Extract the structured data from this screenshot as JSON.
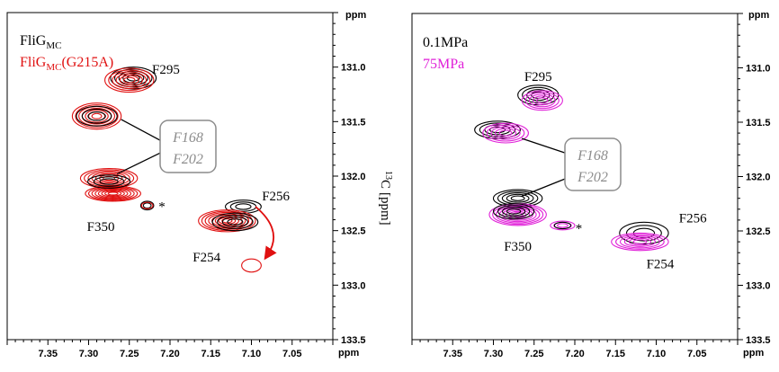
{
  "chart_data": [
    {
      "type": "scatter",
      "subtype": "2D NMR spectrum overlay (contour)",
      "x_unit": "ppm",
      "y_unit": "ppm",
      "xlim": [
        7.4,
        7.0
      ],
      "ylim": [
        130.5,
        133.5
      ],
      "x_ticks": [
        "7.35",
        "7.30",
        "7.25",
        "7.20",
        "7.15",
        "7.10",
        "7.05"
      ],
      "y_ticks": [
        "131.0",
        "131.5",
        "132.0",
        "132.5",
        "133.0",
        "133.5"
      ],
      "legend": [
        "FliG",
        "FliG",
        "MC",
        "MC",
        "(G215A)"
      ],
      "legend_colors": [
        "#000000",
        "#e01010"
      ],
      "axis_label": "[ppm]",
      "axis_label_sup": "13",
      "axis_label_el": "C",
      "box_labels": [
        "F168",
        "F202"
      ],
      "peak_labels": [
        {
          "text": "F295",
          "x": 7.205,
          "y": 131.02
        },
        {
          "text": "F350",
          "x": 7.285,
          "y": 132.46
        },
        {
          "text": "F254",
          "x": 7.155,
          "y": 132.74
        },
        {
          "text": "F256",
          "x": 7.07,
          "y": 132.18
        },
        {
          "text": "*",
          "x": 7.21,
          "y": 132.25
        }
      ],
      "peaks": [
        {
          "series": 0,
          "x": 7.245,
          "y": 131.1,
          "rx": 0.028,
          "ry": 0.1,
          "n": 5
        },
        {
          "series": 1,
          "x": 7.25,
          "y": 131.12,
          "rx": 0.03,
          "ry": 0.11,
          "n": 6
        },
        {
          "series": 1,
          "x": 7.29,
          "y": 131.45,
          "rx": 0.03,
          "ry": 0.12,
          "n": 7
        },
        {
          "series": 0,
          "x": 7.29,
          "y": 131.45,
          "rx": 0.025,
          "ry": 0.09,
          "n": 3
        },
        {
          "series": 1,
          "x": 7.275,
          "y": 132.02,
          "rx": 0.035,
          "ry": 0.09,
          "n": 7
        },
        {
          "series": 1,
          "x": 7.27,
          "y": 132.16,
          "rx": 0.034,
          "ry": 0.07,
          "n": 8
        },
        {
          "series": 0,
          "x": 7.275,
          "y": 132.05,
          "rx": 0.026,
          "ry": 0.06,
          "n": 3
        },
        {
          "series": 0,
          "x": 7.228,
          "y": 132.27,
          "rx": 0.008,
          "ry": 0.04,
          "n": 2
        },
        {
          "series": 1,
          "x": 7.228,
          "y": 132.27,
          "rx": 0.007,
          "ry": 0.03,
          "n": 1
        },
        {
          "series": 0,
          "x": 7.11,
          "y": 132.28,
          "rx": 0.022,
          "ry": 0.06,
          "n": 3
        },
        {
          "series": 1,
          "x": 7.13,
          "y": 132.41,
          "rx": 0.035,
          "ry": 0.1,
          "n": 8
        },
        {
          "series": 0,
          "x": 7.12,
          "y": 132.42,
          "rx": 0.028,
          "ry": 0.08,
          "n": 4
        },
        {
          "series": 1,
          "x": 7.1,
          "y": 132.82,
          "rx": 0.012,
          "ry": 0.06,
          "n": 1
        }
      ],
      "box_anchor": {
        "x": 7.205,
        "y": 131.73
      },
      "connectors": [
        {
          "from": [
            7.26,
            131.48
          ],
          "to": [
            7.21,
            131.68
          ]
        },
        {
          "from": [
            7.265,
            131.98
          ],
          "to": [
            7.21,
            131.78
          ]
        }
      ],
      "arrow": {
        "from": [
          7.095,
          132.28
        ],
        "to": [
          7.08,
          132.72
        ],
        "color": "#e01010"
      }
    },
    {
      "type": "scatter",
      "subtype": "2D NMR spectrum overlay (contour)",
      "x_unit": "ppm",
      "y_unit": "ppm",
      "xlim": [
        7.4,
        7.0
      ],
      "ylim": [
        130.5,
        133.5
      ],
      "x_ticks": [
        "7.35",
        "7.30",
        "7.25",
        "7.20",
        "7.15",
        "7.10",
        "7.05"
      ],
      "y_ticks": [
        "131.0",
        "131.5",
        "132.0",
        "132.5",
        "133.0",
        "133.5"
      ],
      "legend": [
        "0.1MPa",
        "75MPa"
      ],
      "legend_colors": [
        "#000000",
        "#e020d8"
      ],
      "box_labels": [
        "F168",
        "F202"
      ],
      "peak_labels": [
        {
          "text": "F295",
          "x": 7.245,
          "y": 131.08
        },
        {
          "text": "F350",
          "x": 7.27,
          "y": 132.64
        },
        {
          "text": "F254",
          "x": 7.095,
          "y": 132.8
        },
        {
          "text": "F256",
          "x": 7.055,
          "y": 132.38
        },
        {
          "text": "*",
          "x": 7.195,
          "y": 132.45
        }
      ],
      "peaks": [
        {
          "series": 0,
          "x": 7.245,
          "y": 131.25,
          "rx": 0.025,
          "ry": 0.09,
          "n": 4
        },
        {
          "series": 1,
          "x": 7.24,
          "y": 131.3,
          "rx": 0.025,
          "ry": 0.09,
          "n": 5
        },
        {
          "series": 0,
          "x": 7.295,
          "y": 131.57,
          "rx": 0.028,
          "ry": 0.08,
          "n": 4
        },
        {
          "series": 1,
          "x": 7.285,
          "y": 131.6,
          "rx": 0.028,
          "ry": 0.09,
          "n": 5
        },
        {
          "series": 0,
          "x": 7.27,
          "y": 132.2,
          "rx": 0.03,
          "ry": 0.08,
          "n": 5
        },
        {
          "series": 1,
          "x": 7.27,
          "y": 132.35,
          "rx": 0.035,
          "ry": 0.1,
          "n": 8
        },
        {
          "series": 0,
          "x": 7.275,
          "y": 132.32,
          "rx": 0.025,
          "ry": 0.07,
          "n": 4
        },
        {
          "series": 1,
          "x": 7.215,
          "y": 132.45,
          "rx": 0.015,
          "ry": 0.04,
          "n": 3
        },
        {
          "series": 0,
          "x": 7.215,
          "y": 132.45,
          "rx": 0.01,
          "ry": 0.03,
          "n": 1
        },
        {
          "series": 0,
          "x": 7.115,
          "y": 132.52,
          "rx": 0.03,
          "ry": 0.1,
          "n": 3
        },
        {
          "series": 1,
          "x": 7.12,
          "y": 132.6,
          "rx": 0.035,
          "ry": 0.08,
          "n": 6
        }
      ],
      "box_anchor": {
        "x": 7.19,
        "y": 131.9
      },
      "connectors": [
        {
          "from": [
            7.265,
            131.65
          ],
          "to": [
            7.205,
            131.8
          ]
        },
        {
          "from": [
            7.265,
            132.18
          ],
          "to": [
            7.205,
            132.0
          ]
        }
      ]
    }
  ]
}
